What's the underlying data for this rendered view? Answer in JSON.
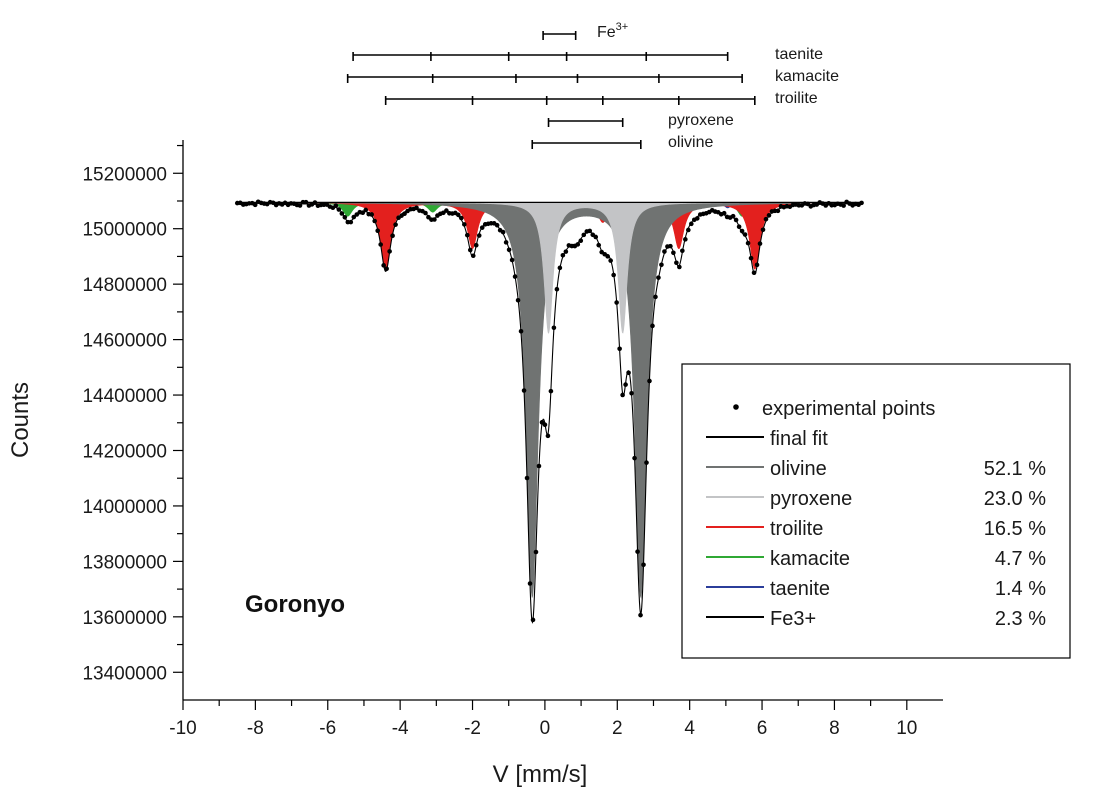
{
  "chart_data": {
    "type": "line",
    "xlabel": "V [mm/s]",
    "ylabel": "Counts",
    "xlim": [
      -10,
      11
    ],
    "ylim": [
      13300000,
      15320000
    ],
    "x_ticks": [
      -10,
      -8,
      -6,
      -4,
      -2,
      0,
      2,
      4,
      6,
      8,
      10
    ],
    "y_ticks": [
      13400000,
      13600000,
      13800000,
      14000000,
      14200000,
      14400000,
      14600000,
      14800000,
      15000000,
      15200000
    ],
    "grid": false,
    "baseline": 15095000,
    "annotation": "Goronyo",
    "legend": {
      "placement": "bottom-right",
      "items": [
        {
          "label": "experimental points",
          "percent": "",
          "color": "#000000",
          "marker": "dot"
        },
        {
          "label": "final fit",
          "percent": "",
          "color": "#000000",
          "marker": "line"
        },
        {
          "label": "olivine",
          "percent": "52.1 %",
          "color": "#707372",
          "marker": "line"
        },
        {
          "label": "pyroxene",
          "percent": "23.0 %",
          "color": "#c3c4c6",
          "marker": "line"
        },
        {
          "label": "troilite",
          "percent": "16.5 %",
          "color": "#e3201e",
          "marker": "line"
        },
        {
          "label": "kamacite",
          "percent": "4.7 %",
          "color": "#2fa834",
          "marker": "line"
        },
        {
          "label": "taenite",
          "percent": "1.4 %",
          "color": "#2b3d9a",
          "marker": "line"
        },
        {
          "label": "Fe3+",
          "percent": "2.3 %",
          "color": "#000000",
          "marker": "line"
        }
      ]
    },
    "stick_diagrams": [
      {
        "label": "Fe",
        "sup": "3+",
        "lines": [
          -0.05,
          0.85
        ]
      },
      {
        "label": "taenite",
        "sup": "",
        "lines": [
          -5.3,
          -3.15,
          -1.0,
          0.6,
          2.8,
          5.05
        ]
      },
      {
        "label": "kamacite",
        "sup": "",
        "lines": [
          -5.45,
          -3.1,
          -0.8,
          0.9,
          3.15,
          5.45
        ]
      },
      {
        "label": "troilite",
        "sup": "",
        "lines": [
          -4.4,
          -2.0,
          0.05,
          1.6,
          3.7,
          5.8
        ]
      },
      {
        "label": "pyroxene",
        "sup": "",
        "lines": [
          0.1,
          2.15
        ]
      },
      {
        "label": "olivine",
        "sup": "",
        "lines": [
          -0.35,
          2.65
        ]
      }
    ],
    "components": [
      {
        "name": "taenite",
        "color": "#2b3d9a",
        "peaks": [
          [
            -5.3,
            0.12,
            20000
          ],
          [
            -3.15,
            0.12,
            14000
          ],
          [
            -1.0,
            0.12,
            8000
          ],
          [
            0.6,
            0.12,
            8000
          ],
          [
            2.8,
            0.12,
            14000
          ],
          [
            5.05,
            0.12,
            20000
          ]
        ]
      },
      {
        "name": "kamacite",
        "color": "#2fa834",
        "peaks": [
          [
            -5.45,
            0.16,
            50000
          ],
          [
            -3.1,
            0.16,
            35000
          ],
          [
            -0.8,
            0.16,
            18000
          ],
          [
            0.9,
            0.16,
            18000
          ],
          [
            3.15,
            0.16,
            35000
          ],
          [
            5.45,
            0.16,
            50000
          ]
        ]
      },
      {
        "name": "troilite",
        "color": "#e3201e",
        "peaks": [
          [
            -4.4,
            0.17,
            240000
          ],
          [
            -2.0,
            0.17,
            165000
          ],
          [
            0.05,
            0.17,
            70000
          ],
          [
            1.6,
            0.17,
            70000
          ],
          [
            3.7,
            0.17,
            165000
          ],
          [
            5.8,
            0.17,
            240000
          ]
        ]
      },
      {
        "name": "Fe3+",
        "color": "#000000",
        "peaks": [
          [
            -0.05,
            0.3,
            40000
          ],
          [
            0.85,
            0.3,
            40000
          ]
        ]
      },
      {
        "name": "olivine",
        "color": "#707372",
        "peaks": [
          [
            -0.35,
            0.2,
            1420000
          ],
          [
            2.65,
            0.2,
            1420000
          ]
        ]
      },
      {
        "name": "pyroxene",
        "color": "#c3c4c6",
        "peaks": [
          [
            0.1,
            0.15,
            470000
          ],
          [
            2.15,
            0.15,
            470000
          ]
        ]
      }
    ],
    "experimental_points": {
      "x_start": -8.5,
      "x_end": 8.75,
      "count": 210
    }
  }
}
